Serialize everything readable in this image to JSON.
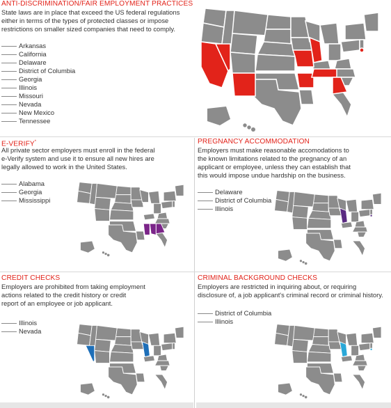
{
  "colors": {
    "title_red": "#e2231a",
    "map_gray": "#8c8c8c",
    "map_border": "#ffffff",
    "highlight_red": "#e2231a",
    "highlight_purple": "#7b2589",
    "highlight_dark_purple": "#5a2a82",
    "highlight_blue": "#1e6fb8",
    "highlight_cyan": "#2aa8d8"
  },
  "panels": {
    "anti_discrimination": {
      "title": "ANTI-DISCRIMINATION/FAIR EMPLOYMENT PRACTICES",
      "description_lines": [
        "State laws are in place that exceed the US federal regulations",
        "either in terms of the types of protected classes or impose",
        "restrictions on smaller sized companies that need to comply."
      ],
      "states": [
        "Arkansas",
        "California",
        "Delaware",
        "District of Columbia",
        "Georgia",
        "Illinois",
        "Missouri",
        "Nevada",
        "New Mexico",
        "Tennessee"
      ],
      "highlight_color": "#e2231a"
    },
    "e_verify": {
      "title": "E-VERIFY",
      "title_mark": "*",
      "description_lines": [
        "All private sector employers must enroll in the federal",
        "e-Verify system and use it to ensure all new hires are",
        "legally allowed to work in the United States."
      ],
      "states": [
        "Alabama",
        "Georgia",
        "Mississippi"
      ],
      "highlight_color": "#7b2589"
    },
    "pregnancy": {
      "title": "PREGNANCY ACCOMMODATION",
      "description_lines": [
        "Employers must make reasonable accomodations to",
        "the known limitations related to the pregnancy of an",
        "applicant or employee, unless they can establish that",
        "this would impose undue hardship on the business."
      ],
      "states": [
        "Delaware",
        "District of Columbia",
        "Illinois"
      ],
      "highlight_color": "#5a2a82"
    },
    "credit": {
      "title": "CREDIT CHECKS",
      "description_lines": [
        "Employers are prohibited from taking employment",
        "actions related to the credit history or credit",
        "report of an employee or job applicant."
      ],
      "states": [
        "Illinois",
        "Nevada"
      ],
      "highlight_color": "#1e6fb8"
    },
    "criminal": {
      "title": "CRIMINAL BACKGROUND CHECKS",
      "description_lines": [
        "Employers are restricted in inquiring about, or requiring",
        "disclosure of, a job applicant's criminal record or criminal history."
      ],
      "states": [
        "District of Columbia",
        "Illinois"
      ],
      "highlight_color": "#2aa8d8"
    }
  }
}
